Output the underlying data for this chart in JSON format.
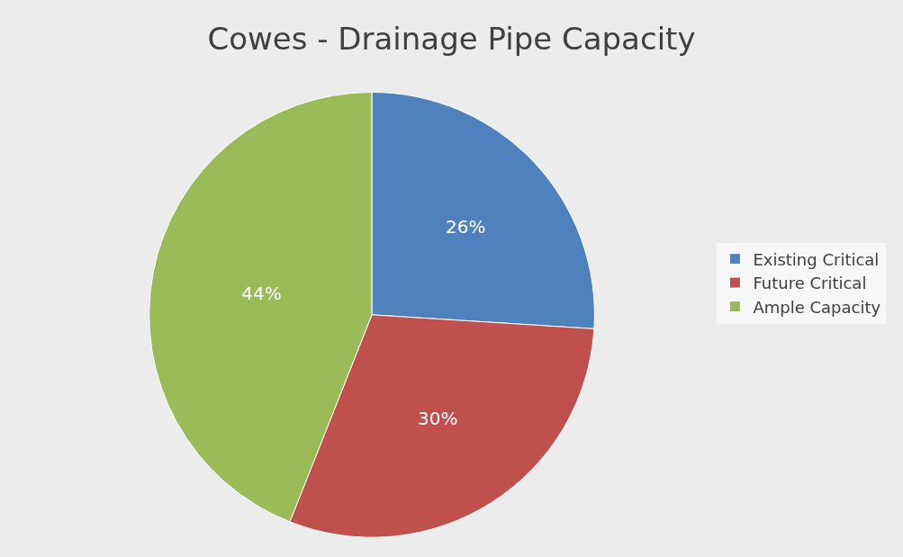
{
  "chart_data": {
    "type": "pie",
    "title": "Cowes - Drainage Pipe Capacity",
    "categories": [
      "Existing Critical",
      "Future Critical",
      "Ample Capacity"
    ],
    "values": [
      26,
      30,
      44
    ],
    "colors": [
      "#4f81bd",
      "#c0504d",
      "#9bbb59"
    ],
    "value_labels": [
      "26%",
      "30%",
      "44%"
    ],
    "legend": "right"
  }
}
